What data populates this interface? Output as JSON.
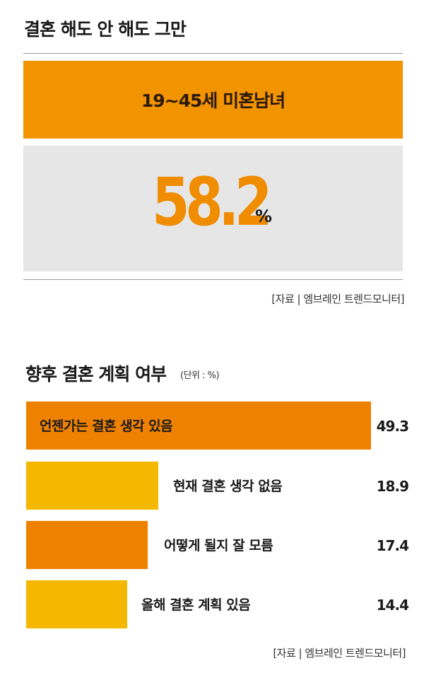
{
  "header": {
    "title": "결혼 해도 안 해도 그만"
  },
  "highlight": {
    "label": "19~45세 미혼남녀",
    "value": "58.2",
    "unit": "%"
  },
  "source1": "[자료 | 엠브레인 트렌드모니터]",
  "section2": {
    "title": "향후 결혼 계획 여부",
    "unit_note": "(단위 : %)"
  },
  "colors": {
    "orange": "#ef8100",
    "yellow": "#f5b800",
    "banner": "#f29300"
  },
  "chart_data": {
    "type": "bar",
    "orientation": "horizontal",
    "categories": [
      "언젠가는 결혼 생각 있음",
      "현재 결혼 생각 없음",
      "어떻게 될지 잘 모름",
      "올해 결혼 계획 있음"
    ],
    "values": [
      49.3,
      18.9,
      17.4,
      14.4
    ],
    "value_labels": [
      "49.3",
      "18.9",
      "17.4",
      "14.4"
    ],
    "bar_colors": [
      "#ef8100",
      "#f5b800",
      "#ef8100",
      "#f5b800"
    ],
    "xlim": [
      0,
      49.3
    ],
    "title": "향후 결혼 계획 여부",
    "grid": false
  },
  "source2": "[자료 | 엠브레인 트렌드모니터]"
}
